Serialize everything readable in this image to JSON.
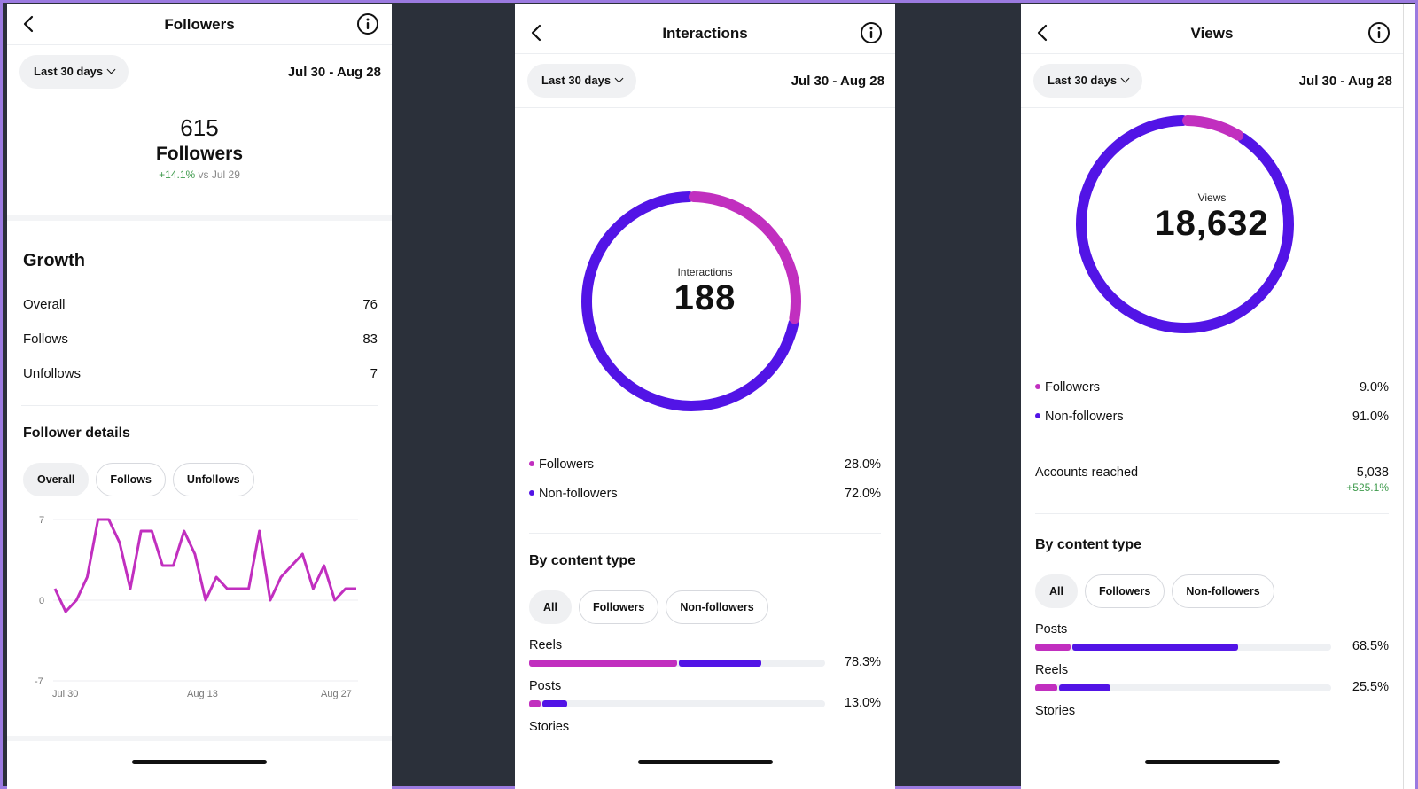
{
  "colors": {
    "followers": "#c12fbf",
    "nonfollowers": "#5214e6",
    "positive": "#3e9a4c",
    "line": "#c12fbf"
  },
  "followers_screen": {
    "title": "Followers",
    "range_label": "Last 30 days",
    "date_range": "Jul 30 - Aug 28",
    "total": "615",
    "total_label": "Followers",
    "change_pct": "+14.1%",
    "change_vs": "vs Jul 29",
    "growth_title": "Growth",
    "growth_rows": [
      {
        "label": "Overall",
        "value": "76"
      },
      {
        "label": "Follows",
        "value": "83"
      },
      {
        "label": "Unfollows",
        "value": "7"
      }
    ],
    "details_title": "Follower details",
    "tabs": [
      "Overall",
      "Follows",
      "Unfollows"
    ],
    "chart_data": {
      "type": "line",
      "y_ticks": [
        "7",
        "0",
        "-7"
      ],
      "ylim": [
        -7,
        7
      ],
      "x_tick_labels": [
        "Jul 30",
        "Aug 13",
        "Aug 27"
      ],
      "series": [
        {
          "values": [
            1,
            -1,
            0,
            2,
            7,
            7,
            5,
            1,
            6,
            6,
            3,
            3,
            6,
            4,
            0,
            2,
            1,
            1,
            1,
            6,
            0,
            2,
            3,
            4,
            1,
            3,
            0,
            1,
            1
          ]
        }
      ]
    }
  },
  "interactions_screen": {
    "title": "Interactions",
    "range_label": "Last 30 days",
    "date_range": "Jul 30 - Aug 28",
    "donut_label": "Interactions",
    "donut_value": "188",
    "donut_followers_fraction": 0.28,
    "legend": [
      {
        "label": "Followers",
        "value": "28.0%",
        "color_key": "followers"
      },
      {
        "label": "Non-followers",
        "value": "72.0%",
        "color_key": "nonfollowers"
      }
    ],
    "content_title": "By content type",
    "tabs": [
      "All",
      "Followers",
      "Non-followers"
    ],
    "content_types": [
      {
        "label": "Reels",
        "value": "78.3%",
        "total": 0.783,
        "followers": 0.5
      },
      {
        "label": "Posts",
        "value": "13.0%",
        "total": 0.13,
        "followers": 0.04
      },
      {
        "label": "Stories",
        "value": "",
        "total": 0,
        "followers": 0
      }
    ]
  },
  "views_screen": {
    "title": "Views",
    "range_label": "Last 30 days",
    "date_range": "Jul 30 - Aug 28",
    "donut_label": "Views",
    "donut_value": "18,632",
    "donut_followers_fraction": 0.09,
    "legend": [
      {
        "label": "Followers",
        "value": "9.0%",
        "color_key": "followers"
      },
      {
        "label": "Non-followers",
        "value": "91.0%",
        "color_key": "nonfollowers"
      }
    ],
    "reached_label": "Accounts reached",
    "reached_value": "5,038",
    "reached_change": "+525.1%",
    "content_title": "By content type",
    "tabs": [
      "All",
      "Followers",
      "Non-followers"
    ],
    "content_types": [
      {
        "label": "Posts",
        "value": "68.5%",
        "total": 0.685,
        "followers": 0.12
      },
      {
        "label": "Reels",
        "value": "25.5%",
        "total": 0.255,
        "followers": 0.075
      },
      {
        "label": "Stories",
        "value": "",
        "total": 0,
        "followers": 0
      }
    ]
  }
}
